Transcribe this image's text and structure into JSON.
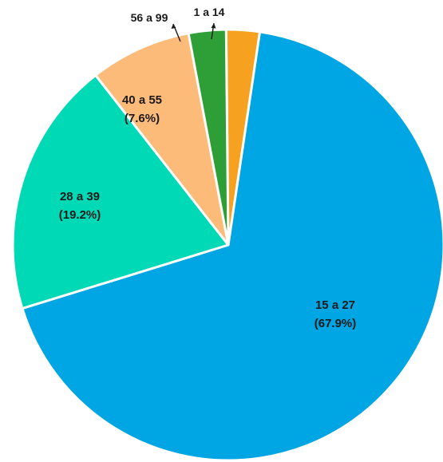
{
  "chart_data": {
    "type": "pie",
    "title": "",
    "slices": [
      {
        "label": "1 a 14",
        "percent_label": "",
        "value": 2.5,
        "color": "#f6a11f"
      },
      {
        "label": "15 a 27",
        "percent_label": "(67.9%)",
        "value": 67.9,
        "color": "#00a5e3"
      },
      {
        "label": "28 a 39",
        "percent_label": "(19.2%)",
        "value": 19.2,
        "color": "#00d9b5"
      },
      {
        "label": "40 a 55",
        "percent_label": "(7.6%)",
        "value": 7.6,
        "color": "#fdbb7a"
      },
      {
        "label": "56 a 99",
        "percent_label": "",
        "value": 2.8,
        "color": "#2e9e36"
      }
    ],
    "start_angle_deg": 0,
    "direction": "clockwise",
    "legend": "none"
  }
}
